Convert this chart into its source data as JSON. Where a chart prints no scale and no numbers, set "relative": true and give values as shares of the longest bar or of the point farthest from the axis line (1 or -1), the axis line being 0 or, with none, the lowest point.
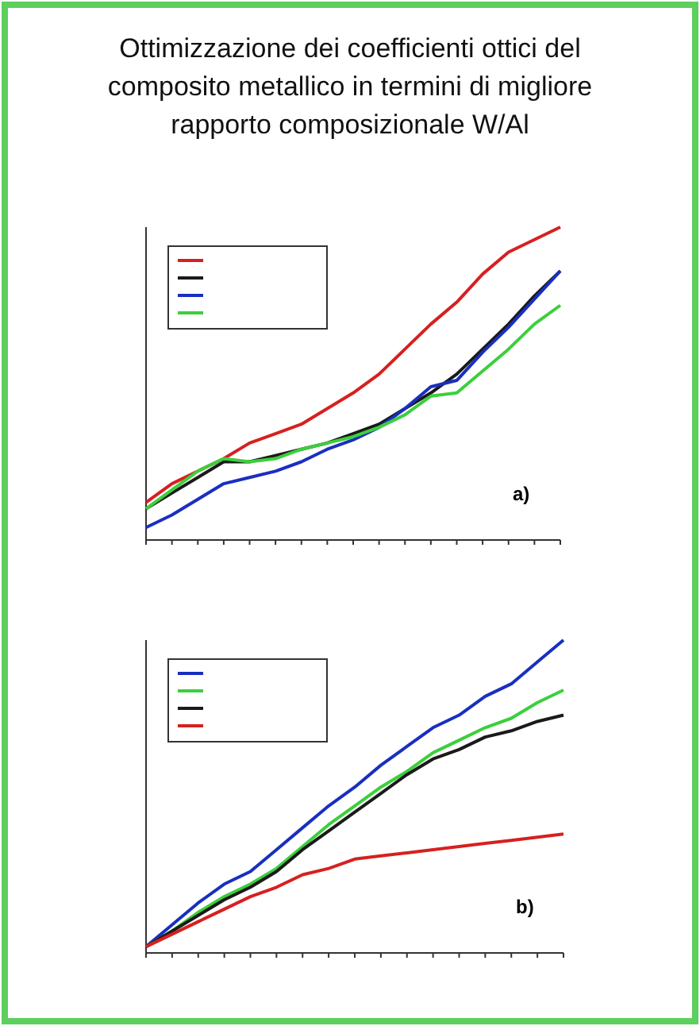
{
  "chart_data": [
    {
      "type": "line",
      "title": "Ottimizzazione dei coefficienti ottici del composito metallico in termini di migliore rapporto composizionale W/Al",
      "relative": true,
      "marker": "none",
      "annotations": [
        "a)"
      ],
      "categories": [
        null,
        null,
        null,
        null,
        null,
        null,
        null,
        null,
        null,
        null,
        null,
        null,
        null,
        null,
        null,
        null,
        null
      ],
      "series": [
        {
          "color": "#d62020",
          "values": [
            0.12,
            0.18,
            0.22,
            0.26,
            0.31,
            0.34,
            0.37,
            0.42,
            0.47,
            0.53,
            0.61,
            0.69,
            0.76,
            0.85,
            0.92,
            0.96,
            1
          ]
        },
        {
          "color": "#1a1a1a",
          "values": [
            0.1,
            0.15,
            0.2,
            0.25,
            0.25,
            0.27,
            0.29,
            0.31,
            0.34,
            0.37,
            0.42,
            0.47,
            0.53,
            0.61,
            0.69,
            0.78,
            0.86
          ]
        },
        {
          "color": "#1a2fbf",
          "values": [
            0.04,
            0.08,
            0.13,
            0.18,
            0.2,
            0.22,
            0.25,
            0.29,
            0.32,
            0.36,
            0.42,
            0.49,
            0.51,
            0.6,
            0.68,
            0.77,
            0.86
          ]
        },
        {
          "color": "#3ccf3c",
          "values": [
            0.1,
            0.16,
            0.22,
            0.26,
            0.25,
            0.26,
            0.29,
            0.31,
            0.33,
            0.36,
            0.4,
            0.46,
            0.47,
            0.54,
            0.61,
            0.69,
            0.75
          ]
        }
      ]
    },
    {
      "type": "line",
      "relative": true,
      "marker": "none",
      "annotations": [
        "b)"
      ],
      "categories": [
        null,
        null,
        null,
        null,
        null,
        null,
        null,
        null,
        null,
        null,
        null,
        null,
        null,
        null,
        null,
        null,
        null
      ],
      "series": [
        {
          "color": "#1a2fbf",
          "values": [
            0.02,
            0.09,
            0.16,
            0.22,
            0.26,
            0.33,
            0.4,
            0.47,
            0.53,
            0.6,
            0.66,
            0.72,
            0.76,
            0.82,
            0.86,
            0.93,
            1
          ]
        },
        {
          "color": "#3ccf3c",
          "values": [
            0.02,
            0.07,
            0.13,
            0.18,
            0.22,
            0.27,
            0.34,
            0.41,
            0.47,
            0.53,
            0.58,
            0.64,
            0.68,
            0.72,
            0.75,
            0.8,
            0.84
          ]
        },
        {
          "color": "#1a1a1a",
          "values": [
            0.02,
            0.07,
            0.12,
            0.17,
            0.21,
            0.26,
            0.33,
            0.39,
            0.45,
            0.51,
            0.57,
            0.62,
            0.65,
            0.69,
            0.71,
            0.74,
            0.76
          ]
        },
        {
          "color": "#d62020",
          "values": [
            0.02,
            0.06,
            0.1,
            0.14,
            0.18,
            0.21,
            0.25,
            0.27,
            0.3,
            0.31,
            0.32,
            0.33,
            0.34,
            0.35,
            0.36,
            0.37,
            0.38
          ]
        }
      ]
    }
  ]
}
